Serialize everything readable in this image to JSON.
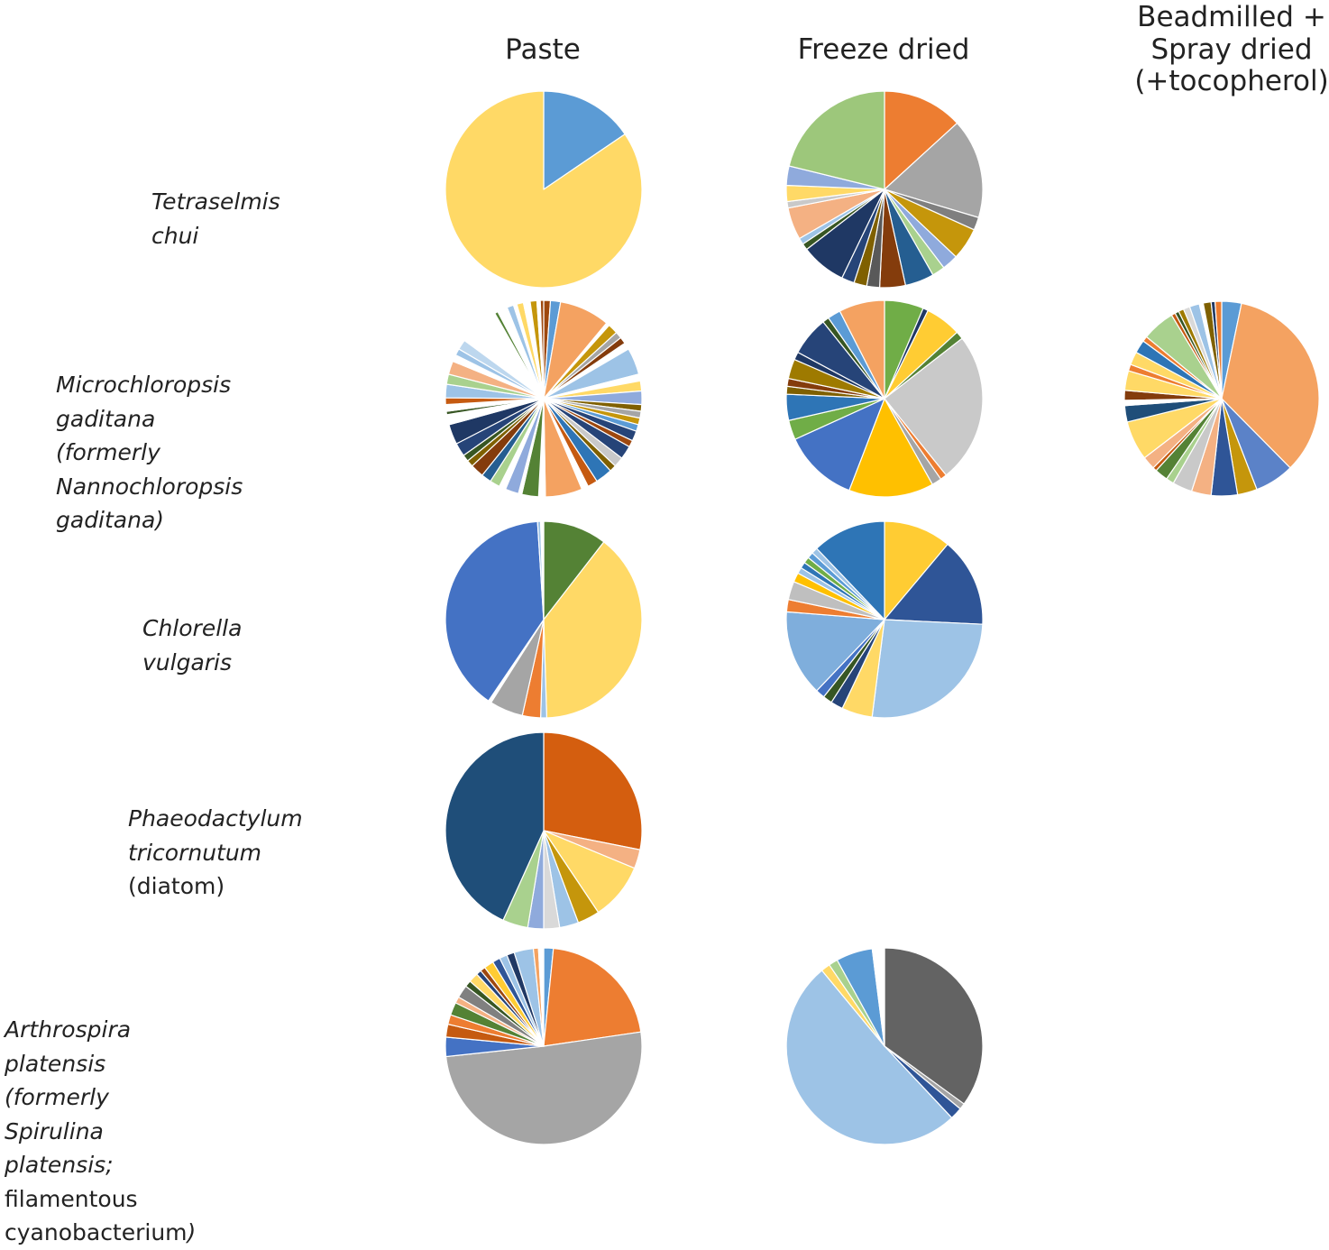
{
  "columns": {
    "paste": "Paste",
    "freeze_dried": "Freeze dried",
    "spray_line1": "Beadmilled +",
    "spray_line2": "Spray dried",
    "spray_line3": "(+tocopherol)"
  },
  "species": {
    "tetraselmis": "Tetraselmis chui",
    "micro_l1": "Microchloropsis gaditana",
    "micro_l2a": "(formerly ",
    "micro_l2b": "Nannochloropsis",
    "micro_l3": "gaditana)",
    "chlorella": "Chlorella vulgaris",
    "phaeo_l1": "Phaeodactylum",
    "phaeo_l2": "tricornutum",
    "phaeo_l3": "(diatom)",
    "arthro_l1": "Arthrospira platensis",
    "arthro_l2a": "(formerly ",
    "arthro_l2b": "Spirulina platensis;",
    "arthro_l3a": "filamentous cyanobacterium",
    "arthro_l3b": ")"
  },
  "chart_data": [
    {
      "type": "pie",
      "species": "Tetraselmis chui",
      "condition": "Paste",
      "values": [
        15.5,
        84.5
      ],
      "colors": [
        "#5B9BD5",
        "#FFD966"
      ]
    },
    {
      "type": "pie",
      "species": "Tetraselmis chui",
      "condition": "Freeze dried",
      "values": [
        12.5,
        15.5,
        2,
        5,
        2.5,
        2,
        4.5,
        4,
        2,
        2,
        2,
        7,
        1,
        1,
        5,
        1,
        2.5,
        3,
        20
      ],
      "colors": [
        "#ED7D31",
        "#A5A5A5",
        "#7F7F7F",
        "#C5960B",
        "#8FAADC",
        "#A9D18E",
        "#255E91",
        "#843C0C",
        "#595959",
        "#7F6000",
        "#264478",
        "#1F3864",
        "#375623",
        "#9DC3E6",
        "#F4B183",
        "#C9C9C9",
        "#FFD966",
        "#8FAADC",
        "#9DC77B"
      ]
    },
    {
      "type": "pie",
      "species": "Microchloropsis gaditana",
      "condition": "Paste",
      "values": [
        1,
        1.5,
        7.5,
        0.5,
        1.5,
        1,
        1,
        1,
        4,
        1,
        1.5,
        2,
        1,
        1,
        1,
        1,
        1.5,
        1,
        2,
        1.5,
        1,
        2.5,
        1.5,
        1,
        5.5,
        1,
        2.5,
        0.5,
        2,
        1,
        1.5,
        1.5,
        2,
        1,
        1,
        2,
        3,
        1.5,
        0.5,
        1,
        1,
        2,
        1.5,
        2,
        1,
        1,
        1.5,
        1,
        1,
        1,
        1,
        1,
        1,
        0.5,
        0.5,
        1,
        1,
        0.5,
        1,
        0.5,
        0.5,
        1,
        0.5,
        0.5
      ],
      "colors": [
        "#9E480E",
        "#5B9BD5",
        "#F4A261",
        "#FFFFFF",
        "#C5960B",
        "#A5A5A5",
        "#843C0C",
        "#FFFFFF",
        "#9DC3E6",
        "#FFFFFF",
        "#FFD966",
        "#8FAADC",
        "#7F6000",
        "#A5A5A5",
        "#C5960B",
        "#5B9BD5",
        "#264478",
        "#9E480E",
        "#264478",
        "#C9C9C9",
        "#7F6000",
        "#2E75B6",
        "#C55A11",
        "#FFFFFF",
        "#F4A261",
        "#FFFFFF",
        "#548235",
        "#FFFFFF",
        "#8FAADC",
        "#FFFFFF",
        "#A9D18E",
        "#255E91",
        "#843C0C",
        "#7F6000",
        "#375623",
        "#264478",
        "#1F3864",
        "#FFFFFF",
        "#375623",
        "#FFFFFF",
        "#C55A11",
        "#9DC3E6",
        "#A9D18E",
        "#F4B183",
        "#FFFFFF",
        "#9DC3E6",
        "#BDD7EE",
        "#FFFFFF",
        "#FFFFFF",
        "#FFFFFF",
        "#FFFFFF",
        "#FFFFFF",
        "#FFFFFF",
        "#548235",
        "#FFFFFF",
        "#FFFFFF",
        "#9DC3E6",
        "#FFFFFF",
        "#FFD966",
        "#FFFFFF",
        "#FFFFFF",
        "#C5960B",
        "#FFFFFF",
        "#9E480E"
      ]
    },
    {
      "type": "pie",
      "species": "Microchloropsis gaditana",
      "condition": "Freeze dried",
      "values": [
        6,
        0.8,
        5.5,
        1.2,
        23,
        1,
        1.5,
        13,
        11.5,
        3,
        4,
        1.2,
        1.2,
        3,
        1.2,
        6,
        1,
        2,
        7
      ],
      "colors": [
        "#70AD47",
        "#203864",
        "#FFCC33",
        "#548235",
        "#C9C9C9",
        "#ED7D31",
        "#A5A5A5",
        "#FFC000",
        "#4472C4",
        "#70AD47",
        "#2E75B6",
        "#7F6000",
        "#843C0C",
        "#9E7A00",
        "#1F3864",
        "#264478",
        "#375623",
        "#5B9BD5",
        "#F4A261"
      ]
    },
    {
      "type": "pie",
      "species": "Microchloropsis gaditana",
      "condition": "Beadmilled + Spray dried (+tocopherol)",
      "values": [
        3,
        31.5,
        6,
        3,
        4,
        3,
        3,
        1.2,
        2,
        0.6,
        2,
        6,
        2.5,
        0.8,
        1.5,
        3,
        1,
        2,
        2,
        0.8,
        5,
        0.6,
        0.6,
        0.8,
        1,
        1.5,
        0.6,
        1.2,
        0.6,
        1
      ],
      "colors": [
        "#5B9BD5",
        "#F4A261",
        "#5B82C8",
        "#C5960B",
        "#2F5597",
        "#F4B183",
        "#C9C9C9",
        "#A9D18E",
        "#548235",
        "#C55A11",
        "#F4B183",
        "#FFD966",
        "#1F4E79",
        "#FFFFFF",
        "#843C0C",
        "#FFD966",
        "#ED7D31",
        "#FFD966",
        "#2E75B6",
        "#ED7D31",
        "#A9D18E",
        "#C55A11",
        "#375623",
        "#9E7A00",
        "#D9D9D9",
        "#9DC3E6",
        "#FFFFFF",
        "#7F6000",
        "#203864",
        "#ED7D31"
      ]
    },
    {
      "type": "pie",
      "species": "Chlorella vulgaris",
      "condition": "Paste",
      "values": [
        10.5,
        39,
        1,
        3,
        5.5,
        0.5,
        39.5,
        0.5,
        0.5
      ],
      "colors": [
        "#548235",
        "#FFD966",
        "#9DC3E6",
        "#ED7D31",
        "#A5A5A5",
        "#FFFFFF",
        "#4472C4",
        "#9DC3E6",
        "#FFFFFF"
      ]
    },
    {
      "type": "pie",
      "species": "Chlorella vulgaris",
      "condition": "Freeze dried",
      "values": [
        11,
        14.5,
        26,
        5,
        2,
        1.5,
        1.5,
        14,
        2,
        3,
        1.5,
        1,
        1,
        1,
        1,
        1,
        12
      ],
      "colors": [
        "#FFCC33",
        "#2F5597",
        "#9DC3E6",
        "#FFD966",
        "#264478",
        "#375623",
        "#4472C4",
        "#7FAEDC",
        "#ED7D31",
        "#BFBFBF",
        "#FFC000",
        "#9DC3E6",
        "#2E75B6",
        "#70AD47",
        "#5B9BD5",
        "#9DC3E6",
        "#2E75B6"
      ]
    },
    {
      "type": "pie",
      "species": "Phaeodactylum tricornutum",
      "condition": "Paste",
      "values": [
        27,
        3,
        9,
        3.5,
        3,
        2.5,
        2.5,
        4,
        41.5
      ],
      "colors": [
        "#D45E0F",
        "#F4B183",
        "#FFD966",
        "#C5960B",
        "#9DC3E6",
        "#D9D9D9",
        "#8FAADC",
        "#A9D18E",
        "#1F4E79"
      ]
    },
    {
      "type": "pie",
      "species": "Arthrospira platensis",
      "condition": "Paste",
      "values": [
        1.5,
        20,
        48,
        3,
        2,
        1.5,
        2,
        1,
        2,
        1,
        1.5,
        0.8,
        0.8,
        1.5,
        1.2,
        1.2,
        1.2,
        3,
        0.8,
        0.8
      ],
      "colors": [
        "#5B9BD5",
        "#ED7D31",
        "#A5A5A5",
        "#4472C4",
        "#C55A11",
        "#ED7D31",
        "#548235",
        "#F4B183",
        "#808080",
        "#375623",
        "#FFD966",
        "#264478",
        "#9E480E",
        "#FFCC33",
        "#2F5597",
        "#9DC3E6",
        "#203864",
        "#9DC3E6",
        "#F4A261",
        "#FFFFFF"
      ]
    },
    {
      "type": "pie",
      "species": "Arthrospira platensis",
      "condition": "Freeze dried",
      "values": [
        35,
        1,
        2,
        51,
        1.5,
        1.5,
        6,
        2
      ],
      "colors": [
        "#636363",
        "#A5A5A5",
        "#2F5597",
        "#9DC3E6",
        "#FFD966",
        "#A9D18E",
        "#5B9BD5",
        "#FFFFFF"
      ]
    }
  ]
}
